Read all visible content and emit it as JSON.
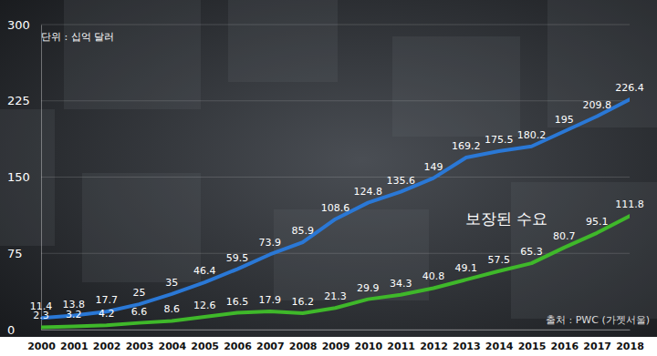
{
  "chart_data": {
    "type": "line",
    "subtitle": "단위 : 십억 달러",
    "source": "출처 : PWC (가젯서울)",
    "categories": [
      "2000",
      "2001",
      "2002",
      "2003",
      "2004",
      "2005",
      "2006",
      "2007",
      "2008",
      "2009",
      "2010",
      "2011",
      "2012",
      "2013",
      "2014",
      "2015",
      "2016",
      "2017",
      "2018"
    ],
    "series": [
      {
        "color": "#2a78d6",
        "values": [
          11.4,
          13.8,
          17.7,
          25,
          35,
          46.4,
          59.5,
          73.9,
          85.9,
          108.6,
          124.8,
          135.6,
          149,
          169.2,
          175.5,
          180.2,
          195,
          209.8,
          226.4
        ]
      },
      {
        "name": "보장된 수요",
        "color": "#3fb82a",
        "values": [
          2.3,
          3.2,
          4.2,
          6.6,
          8.6,
          12.6,
          16.5,
          17.9,
          16.2,
          21.3,
          29.9,
          34.3,
          40.8,
          49.1,
          57.5,
          65.3,
          80.7,
          95.1,
          111.8
        ]
      }
    ],
    "ylim": [
      0,
      300
    ],
    "yticks": [
      0,
      75,
      150,
      225,
      300
    ],
    "grid": true,
    "data_labels": true
  }
}
